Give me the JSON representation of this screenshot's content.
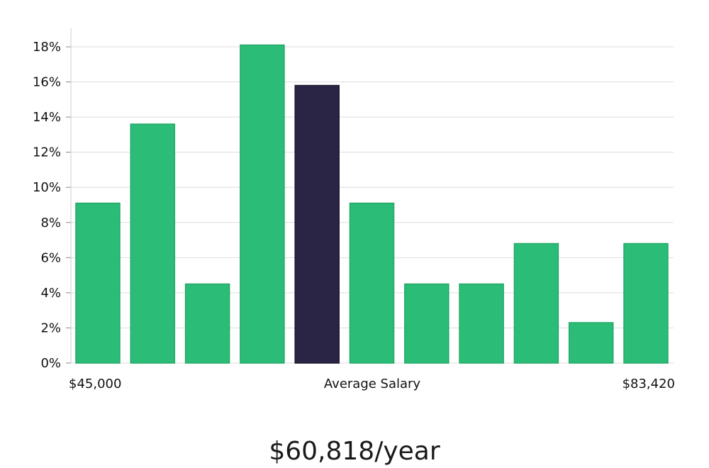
{
  "chart_data": {
    "type": "bar",
    "values": [
      9.1,
      13.6,
      4.5,
      18.1,
      15.8,
      9.1,
      4.5,
      4.5,
      6.8,
      2.3,
      6.8
    ],
    "highlight_index": 4,
    "ylim": [
      0,
      18
    ],
    "y_ticks": [
      "0%",
      "2%",
      "4%",
      "6%",
      "8%",
      "10%",
      "12%",
      "14%",
      "16%",
      "18%"
    ],
    "x_min_label": "$45,000",
    "x_center_label": "Average Salary",
    "x_max_label": "$83,420",
    "grid": true,
    "colors": {
      "bar": "#2bbd77",
      "bar_border": "#23a866",
      "highlight": "#2a2545",
      "grid": "#dddddd",
      "axis": "#cccccc"
    }
  },
  "salary": "$60,818/year"
}
